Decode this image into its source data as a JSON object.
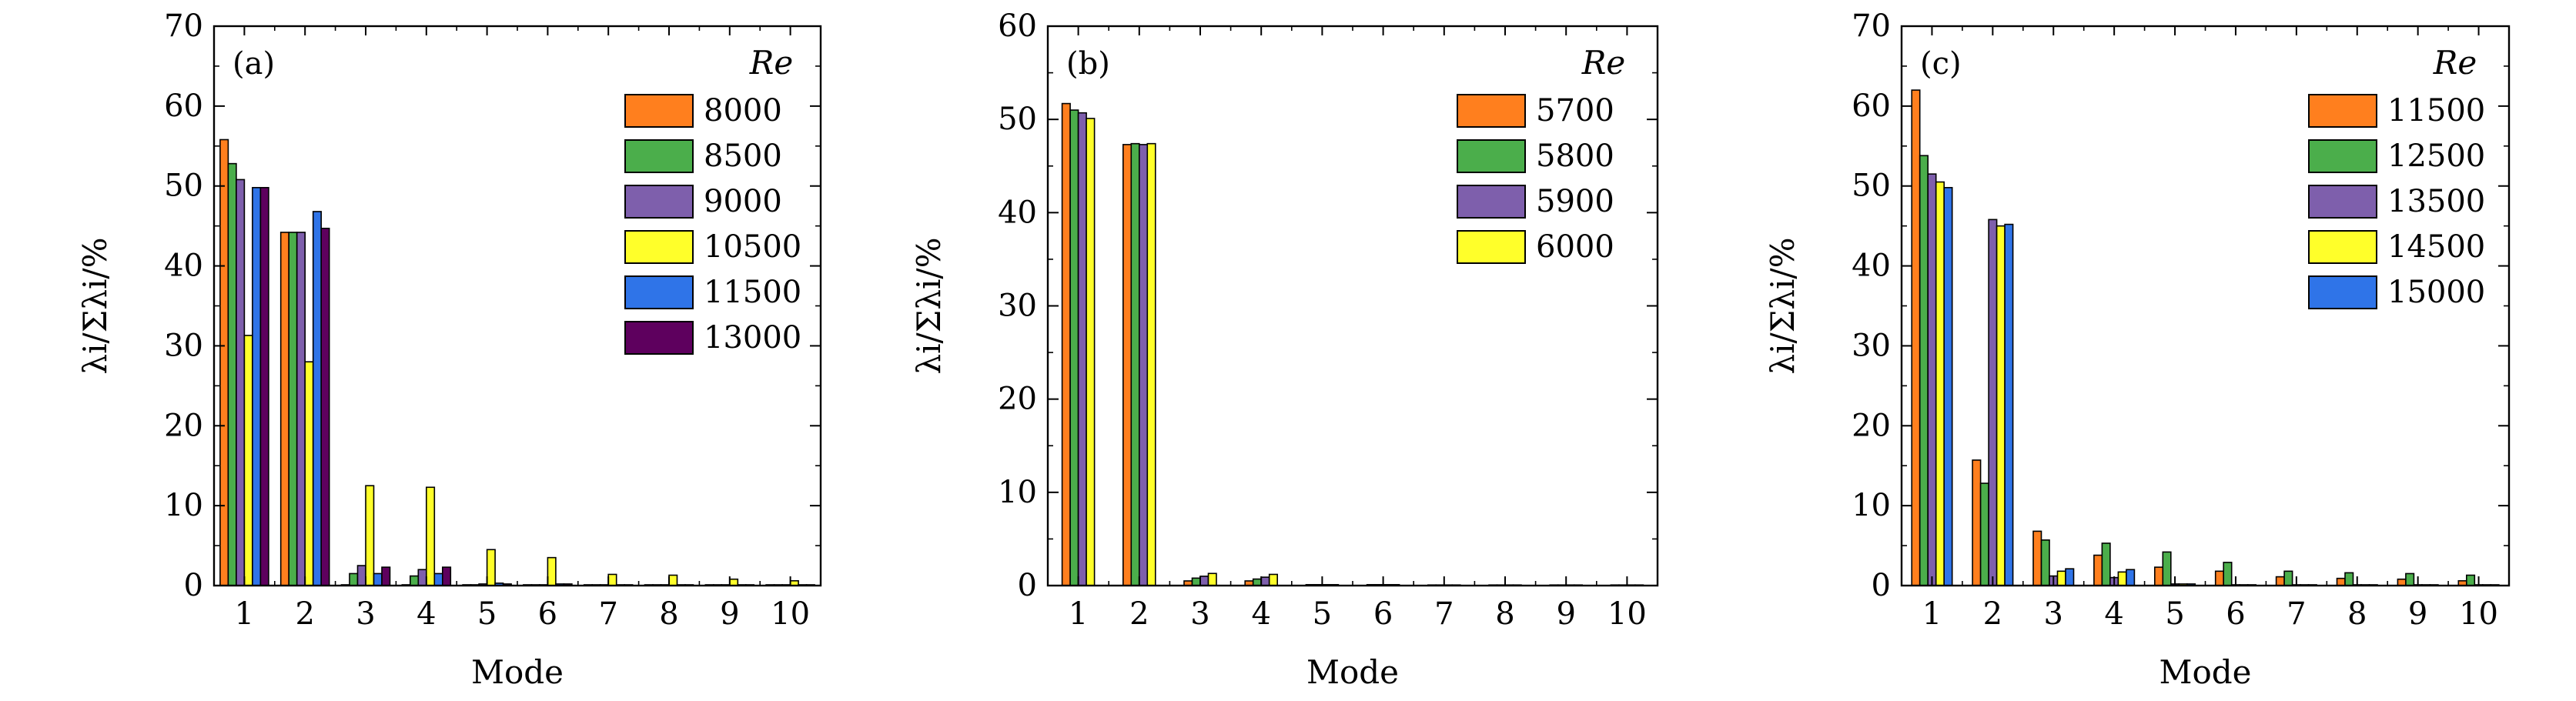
{
  "colors": {
    "orange": "#FF7F1E",
    "green": "#4BAE4B",
    "purple": "#7E5FAC",
    "yellow": "#FFFF2A",
    "blue": "#2F74E8",
    "darkpurple": "#5E005E"
  },
  "chart_data": [
    {
      "type": "bar",
      "panel_label": "(a)",
      "categories": [
        "1",
        "2",
        "3",
        "4",
        "5",
        "6",
        "7",
        "8",
        "9",
        "10"
      ],
      "xlabel": "Mode",
      "ylabel": "λi/Σλi/%",
      "ylim": [
        0,
        70
      ],
      "yticks": [
        "0",
        "10",
        "20",
        "30",
        "40",
        "50",
        "60",
        "70"
      ],
      "legend_title": "Re",
      "legend_position": "top-right",
      "series": [
        {
          "name": "8000",
          "color": "#FF7F1E",
          "values": [
            55.8,
            44.2,
            0.1,
            0.1,
            0.1,
            0.1,
            0.1,
            0.1,
            0.1,
            0.1
          ]
        },
        {
          "name": "8500",
          "color": "#4BAE4B",
          "values": [
            52.8,
            44.2,
            1.5,
            1.2,
            0.1,
            0.1,
            0.1,
            0.1,
            0.1,
            0.1
          ]
        },
        {
          "name": "9000",
          "color": "#7E5FAC",
          "values": [
            50.8,
            44.2,
            2.5,
            2.0,
            0.2,
            0.1,
            0.1,
            0.1,
            0.1,
            0.1
          ]
        },
        {
          "name": "10500",
          "color": "#FFFF2A",
          "values": [
            31.3,
            28.0,
            12.5,
            12.3,
            4.5,
            3.5,
            1.4,
            1.3,
            0.8,
            0.6
          ]
        },
        {
          "name": "11500",
          "color": "#2F74E8",
          "values": [
            49.8,
            46.8,
            1.5,
            1.5,
            0.3,
            0.2,
            0.1,
            0.1,
            0.1,
            0.1
          ]
        },
        {
          "name": "13000",
          "color": "#5E005E",
          "values": [
            49.8,
            44.7,
            2.3,
            2.3,
            0.2,
            0.2,
            0.1,
            0.1,
            0.1,
            0.1
          ]
        }
      ]
    },
    {
      "type": "bar",
      "panel_label": "(b)",
      "categories": [
        "1",
        "2",
        "3",
        "4",
        "5",
        "6",
        "7",
        "8",
        "9",
        "10"
      ],
      "xlabel": "Mode",
      "ylabel": "λi/Σλi/%",
      "ylim": [
        0,
        60
      ],
      "yticks": [
        "0",
        "10",
        "20",
        "30",
        "40",
        "50",
        "60"
      ],
      "legend_title": "Re",
      "legend_position": "top-right",
      "series": [
        {
          "name": "5700",
          "color": "#FF7F1E",
          "values": [
            51.7,
            47.3,
            0.5,
            0.5,
            0.1,
            0.1,
            0.0,
            0.0,
            0.0,
            0.0
          ]
        },
        {
          "name": "5800",
          "color": "#4BAE4B",
          "values": [
            51.0,
            47.4,
            0.8,
            0.7,
            0.1,
            0.1,
            0.0,
            0.0,
            0.0,
            0.0
          ]
        },
        {
          "name": "5900",
          "color": "#7E5FAC",
          "values": [
            50.7,
            47.3,
            1.0,
            0.9,
            0.1,
            0.1,
            0.0,
            0.0,
            0.0,
            0.0
          ]
        },
        {
          "name": "6000",
          "color": "#FFFF2A",
          "values": [
            50.1,
            47.4,
            1.3,
            1.2,
            0.1,
            0.1,
            0.0,
            0.0,
            0.0,
            0.0
          ]
        }
      ]
    },
    {
      "type": "bar",
      "panel_label": "(c)",
      "categories": [
        "1",
        "2",
        "3",
        "4",
        "5",
        "6",
        "7",
        "8",
        "9",
        "10"
      ],
      "xlabel": "Mode",
      "ylabel": "λi/Σλi/%",
      "ylim": [
        0,
        70
      ],
      "yticks": [
        "0",
        "10",
        "20",
        "30",
        "40",
        "50",
        "60",
        "70"
      ],
      "legend_title": "Re",
      "legend_position": "top-right",
      "series": [
        {
          "name": "11500",
          "color": "#FF7F1E",
          "values": [
            62.0,
            15.7,
            6.8,
            3.8,
            2.3,
            1.8,
            1.1,
            0.9,
            0.8,
            0.6
          ]
        },
        {
          "name": "12500",
          "color": "#4BAE4B",
          "values": [
            53.8,
            12.8,
            5.7,
            5.3,
            4.2,
            2.9,
            1.8,
            1.6,
            1.5,
            1.3
          ]
        },
        {
          "name": "13500",
          "color": "#7E5FAC",
          "values": [
            51.5,
            45.8,
            1.2,
            1.0,
            0.2,
            0.1,
            0.1,
            0.1,
            0.1,
            0.1
          ]
        },
        {
          "name": "14500",
          "color": "#FFFF2A",
          "values": [
            50.5,
            45.0,
            1.8,
            1.7,
            0.2,
            0.1,
            0.1,
            0.1,
            0.1,
            0.1
          ]
        },
        {
          "name": "15000",
          "color": "#2F74E8",
          "values": [
            49.8,
            45.2,
            2.1,
            2.0,
            0.2,
            0.1,
            0.1,
            0.1,
            0.1,
            0.1
          ]
        }
      ]
    }
  ]
}
